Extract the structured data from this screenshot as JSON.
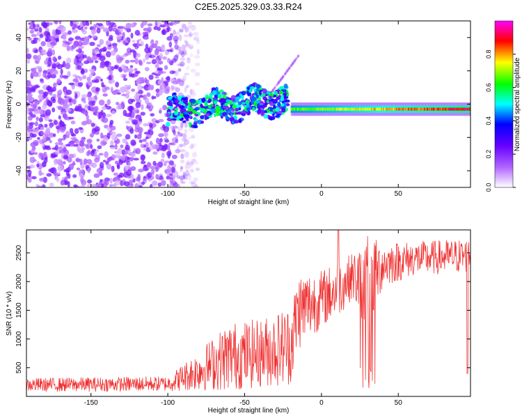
{
  "title": "C2E5.2025.329.03.33.R24",
  "colors": {
    "snr_line": "#f03030",
    "axis": "#000000",
    "background": "#ffffff"
  },
  "chart_data": [
    {
      "type": "heatmap",
      "name": "spectrogram",
      "xlabel": "Height of straight line (km)",
      "ylabel": "Frequency (Hz)",
      "xlim": [
        -192,
        97
      ],
      "ylim": [
        -50,
        50
      ],
      "xticks": [
        -150,
        -100,
        -50,
        0,
        50
      ],
      "yticks": [
        -40,
        -20,
        0,
        20,
        40
      ],
      "colorbar": {
        "label": "Normalized spectral amplitude",
        "range": [
          0,
          1
        ],
        "ticks": [
          "0.0",
          "0.2",
          "0.4",
          "0.6",
          "0.8"
        ],
        "colormap": [
          "#ffffff",
          "#b266ff",
          "#6600ff",
          "#0000ff",
          "#00ffff",
          "#00ff00",
          "#ffff00",
          "#ff0000",
          "#ff00ff"
        ]
      },
      "features": [
        {
          "region": "noise",
          "x": [
            -192,
            -85
          ],
          "freq_spread": 50,
          "amplitude": 0.15
        },
        {
          "region": "signal_onset",
          "x": [
            -100,
            -22
          ],
          "freq_center_from": -5,
          "freq_center_to": 3,
          "amplitude": 0.45
        },
        {
          "region": "steady_line",
          "x": [
            -20,
            95
          ],
          "freq_center": -3,
          "amplitude": 0.9
        }
      ]
    },
    {
      "type": "line",
      "name": "snr",
      "xlabel": "Height of straight line (km)",
      "ylabel": "SNR (10 * v/v)",
      "xlim": [
        -192,
        97
      ],
      "ylim": [
        0,
        2900
      ],
      "xticks": [
        -150,
        -100,
        -50,
        0,
        50
      ],
      "yticks": [
        500,
        1000,
        1500,
        2000,
        2500
      ],
      "envelope": [
        {
          "x": -190,
          "mean": 200,
          "spread": 120
        },
        {
          "x": -100,
          "mean": 220,
          "spread": 130
        },
        {
          "x": -80,
          "mean": 450,
          "spread": 350
        },
        {
          "x": -60,
          "mean": 700,
          "spread": 600
        },
        {
          "x": -40,
          "mean": 750,
          "spread": 600
        },
        {
          "x": -20,
          "mean": 900,
          "spread": 700
        },
        {
          "x": -15,
          "mean": 1500,
          "spread": 700
        },
        {
          "x": 0,
          "mean": 1700,
          "spread": 500
        },
        {
          "x": 10,
          "mean": 1850,
          "spread": 500
        },
        {
          "x": 20,
          "mean": 2100,
          "spread": 400
        },
        {
          "x": 30,
          "mean": 1900,
          "spread": 900
        },
        {
          "x": 40,
          "mean": 2300,
          "spread": 400
        },
        {
          "x": 60,
          "mean": 2400,
          "spread": 300
        },
        {
          "x": 95,
          "mean": 2450,
          "spread": 300
        }
      ],
      "spikes": [
        {
          "x": 11,
          "value": 2900
        },
        {
          "x": 31,
          "value": 150
        },
        {
          "x": 95,
          "value": 400
        }
      ]
    }
  ]
}
